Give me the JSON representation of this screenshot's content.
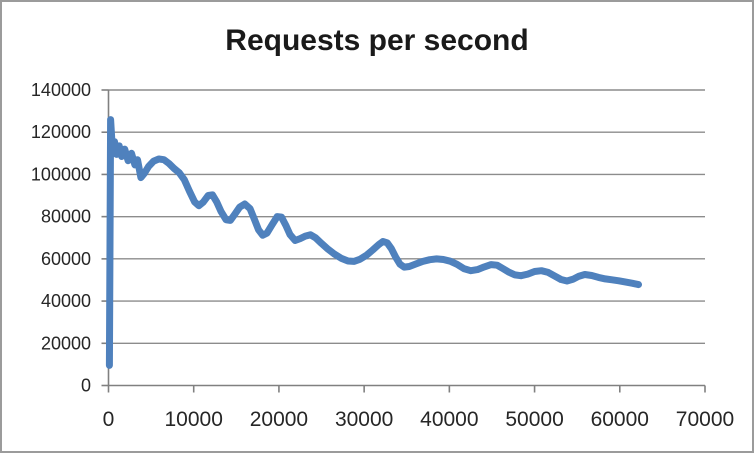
{
  "chart_data": {
    "type": "line",
    "title": "Requests per second",
    "xlabel": "",
    "ylabel": "",
    "xlim": [
      0,
      70000
    ],
    "ylim": [
      0,
      140000
    ],
    "x_ticks": [
      0,
      10000,
      20000,
      30000,
      40000,
      50000,
      60000,
      70000
    ],
    "y_ticks": [
      0,
      20000,
      40000,
      60000,
      80000,
      100000,
      120000,
      140000
    ],
    "grid": "horizontal",
    "legend": "none",
    "line_color": "#4f81bd",
    "grid_color": "#8c8c8c",
    "axis_color": "#808080",
    "tick_label_color": "#262626",
    "title_color": "#1a1a1a",
    "background": "#ffffff",
    "series": [
      {
        "name": "Requests per second",
        "points": [
          [
            100,
            9500
          ],
          [
            250,
            126000
          ],
          [
            450,
            112500
          ],
          [
            700,
            115500
          ],
          [
            950,
            109500
          ],
          [
            1250,
            113500
          ],
          [
            1550,
            108500
          ],
          [
            1900,
            112000
          ],
          [
            2300,
            106500
          ],
          [
            2700,
            110000
          ],
          [
            3100,
            104500
          ],
          [
            3400,
            107000
          ],
          [
            3800,
            98500
          ],
          [
            4200,
            100500
          ],
          [
            4700,
            103800
          ],
          [
            5300,
            106300
          ],
          [
            5900,
            107300
          ],
          [
            6500,
            107000
          ],
          [
            7100,
            105200
          ],
          [
            7700,
            102800
          ],
          [
            8300,
            100800
          ],
          [
            8900,
            97500
          ],
          [
            9500,
            92000
          ],
          [
            10100,
            87000
          ],
          [
            10600,
            85200
          ],
          [
            11100,
            86800
          ],
          [
            11700,
            90000
          ],
          [
            12200,
            90300
          ],
          [
            12700,
            87000
          ],
          [
            13200,
            82500
          ],
          [
            13800,
            78500
          ],
          [
            14300,
            78200
          ],
          [
            14800,
            81000
          ],
          [
            15400,
            84500
          ],
          [
            16000,
            86000
          ],
          [
            16600,
            83800
          ],
          [
            17100,
            79000
          ],
          [
            17600,
            73800
          ],
          [
            18100,
            71200
          ],
          [
            18600,
            72200
          ],
          [
            19200,
            76200
          ],
          [
            19800,
            80000
          ],
          [
            20300,
            79800
          ],
          [
            20800,
            76000
          ],
          [
            21300,
            71500
          ],
          [
            21900,
            68700
          ],
          [
            22500,
            69600
          ],
          [
            23100,
            70800
          ],
          [
            23700,
            71400
          ],
          [
            24300,
            70000
          ],
          [
            25000,
            67300
          ],
          [
            25700,
            64800
          ],
          [
            26500,
            62300
          ],
          [
            27300,
            60300
          ],
          [
            28100,
            59000
          ],
          [
            28800,
            58800
          ],
          [
            29500,
            59800
          ],
          [
            30300,
            61800
          ],
          [
            31000,
            64200
          ],
          [
            31700,
            66700
          ],
          [
            32200,
            68200
          ],
          [
            32700,
            67600
          ],
          [
            33200,
            64800
          ],
          [
            33700,
            60800
          ],
          [
            34200,
            57500
          ],
          [
            34700,
            56100
          ],
          [
            35300,
            56400
          ],
          [
            36100,
            57600
          ],
          [
            36900,
            58800
          ],
          [
            37700,
            59600
          ],
          [
            38500,
            60000
          ],
          [
            39300,
            59700
          ],
          [
            40100,
            58900
          ],
          [
            40900,
            57400
          ],
          [
            41700,
            55400
          ],
          [
            42500,
            54400
          ],
          [
            43300,
            54900
          ],
          [
            44100,
            56200
          ],
          [
            44900,
            57300
          ],
          [
            45600,
            57000
          ],
          [
            46300,
            55400
          ],
          [
            47000,
            53700
          ],
          [
            47700,
            52400
          ],
          [
            48400,
            52000
          ],
          [
            49200,
            52800
          ],
          [
            50000,
            54000
          ],
          [
            50800,
            54400
          ],
          [
            51600,
            53600
          ],
          [
            52400,
            51800
          ],
          [
            53100,
            50200
          ],
          [
            53800,
            49500
          ],
          [
            54500,
            50300
          ],
          [
            55200,
            51800
          ],
          [
            55900,
            52600
          ],
          [
            56700,
            52100
          ],
          [
            57500,
            51200
          ],
          [
            58300,
            50500
          ],
          [
            59100,
            50100
          ],
          [
            59900,
            49600
          ],
          [
            60700,
            49000
          ],
          [
            61500,
            48400
          ],
          [
            62200,
            47800
          ]
        ]
      }
    ]
  }
}
